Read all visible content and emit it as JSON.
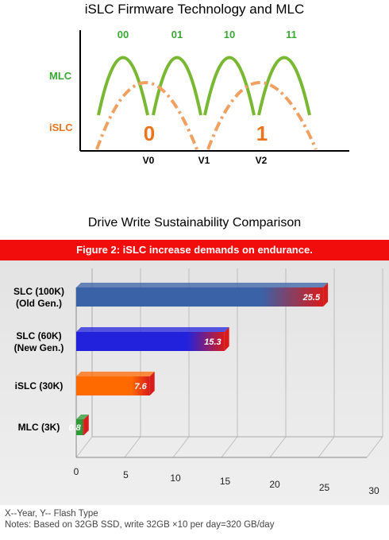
{
  "top_chart": {
    "title": "iSLC Firmware Technology and MLC",
    "row_labels": [
      "MLC",
      "iSLC"
    ],
    "state_labels": [
      "00",
      "01",
      "10",
      "11"
    ],
    "big_digits": [
      "0",
      "1"
    ],
    "v_labels": [
      "V0",
      "V1",
      "V2"
    ],
    "colors": {
      "mlc": "#78b832",
      "islc": "#f0a060",
      "state_text": "#39a835",
      "digit_text": "#e8741e"
    }
  },
  "chart_data": {
    "type": "bar",
    "title": "Drive Write Sustainability Comparison",
    "banner": "Figure 2: iSLC increase demands on endurance.",
    "categories": [
      "SLC (100K)\n(Old Gen.)",
      "SLC (60K)\n(New Gen.)",
      "iSLC (30K)",
      "MLC (3K)"
    ],
    "values": [
      25.5,
      15.3,
      7.6,
      0.8
    ],
    "value_labels": [
      "25.5",
      "15.3",
      "7.6",
      "0.8"
    ],
    "xlim": [
      0,
      30
    ],
    "x_ticks": [
      "0",
      "5",
      "10",
      "15",
      "20",
      "25",
      "30"
    ],
    "orientation": "horizontal",
    "grid": true,
    "bar_colors": [
      "#3a62a7",
      "#2222dd",
      "#ff6a00",
      "#2e9a36"
    ],
    "bar_end_color": "#d81b1b"
  },
  "notes": {
    "line1": "X--Year, Y-- Flash Type",
    "line2": "Notes: Based on 32GB SSD, write 32GB ×10 per day=320 GB/day"
  }
}
